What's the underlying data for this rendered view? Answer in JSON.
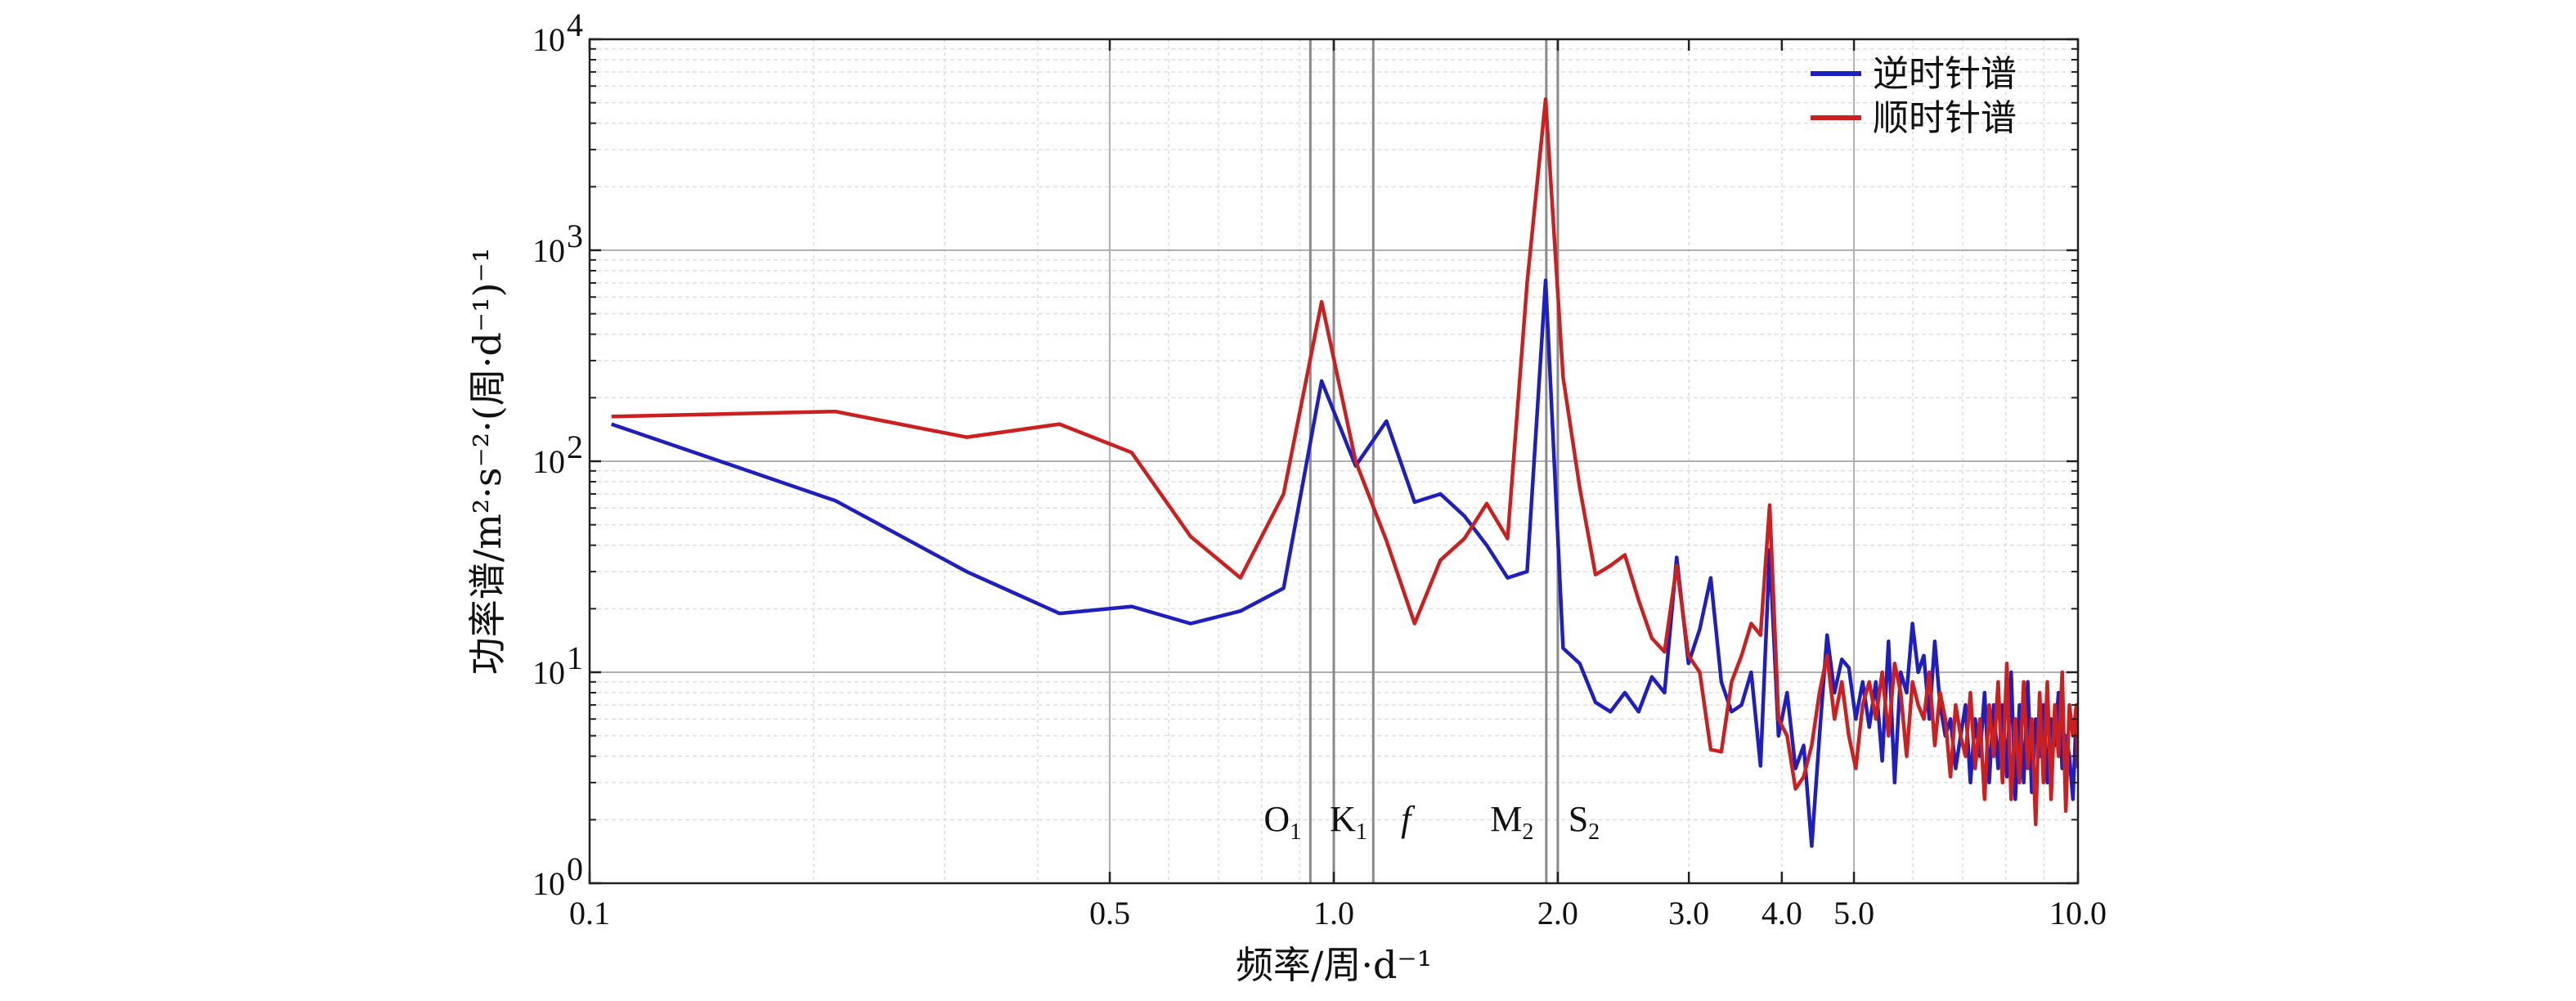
{
  "chart_data": {
    "type": "line",
    "xscale": "log",
    "yscale": "log",
    "xlim": [
      0.1,
      10.0
    ],
    "ylim": [
      1,
      10000
    ],
    "grid": true,
    "legend_position": "top-right",
    "xlabel": "频率/周·d⁻¹",
    "ylabel": "功率谱/m²·s⁻²·(周·d⁻¹)⁻¹",
    "x_ticks": [
      {
        "value": 0.1,
        "label": "0.1"
      },
      {
        "value": 0.5,
        "label": "0.5"
      },
      {
        "value": 1.0,
        "label": "1.0"
      },
      {
        "value": 2.0,
        "label": "2.0"
      },
      {
        "value": 3.0,
        "label": "3.0"
      },
      {
        "value": 4.0,
        "label": "4.0"
      },
      {
        "value": 5.0,
        "label": "5.0"
      },
      {
        "value": 10.0,
        "label": "10.0"
      }
    ],
    "y_ticks": [
      {
        "value": 1,
        "base": "10",
        "exp": "0"
      },
      {
        "value": 10,
        "base": "10",
        "exp": "1"
      },
      {
        "value": 100,
        "base": "10",
        "exp": "2"
      },
      {
        "value": 1000,
        "base": "10",
        "exp": "3"
      },
      {
        "value": 10000,
        "base": "10",
        "exp": "4"
      }
    ],
    "reference_lines": [
      {
        "x": 0.93,
        "label": "O",
        "sub": "1",
        "italic": false
      },
      {
        "x": 1.0,
        "label": "K",
        "sub": "1",
        "italic": false
      },
      {
        "x": 1.13,
        "label": "f",
        "sub": "",
        "italic": true
      },
      {
        "x": 1.93,
        "label": "M",
        "sub": "2",
        "italic": false
      },
      {
        "x": 2.0,
        "label": "S",
        "sub": "2",
        "italic": false
      }
    ],
    "series": [
      {
        "name": "逆时针谱",
        "color": "#1f1fbf",
        "points": [
          [
            0.107,
            150
          ],
          [
            0.214,
            65
          ],
          [
            0.321,
            30
          ],
          [
            0.428,
            19
          ],
          [
            0.535,
            20.5
          ],
          [
            0.642,
            17
          ],
          [
            0.749,
            19.5
          ],
          [
            0.856,
            25
          ],
          [
            0.963,
            240
          ],
          [
            1.07,
            95
          ],
          [
            1.177,
            155
          ],
          [
            1.284,
            64
          ],
          [
            1.391,
            70
          ],
          [
            1.498,
            55
          ],
          [
            1.605,
            40
          ],
          [
            1.712,
            28
          ],
          [
            1.819,
            30
          ],
          [
            1.926,
            720
          ],
          [
            2.033,
            13
          ],
          [
            2.14,
            11
          ],
          [
            2.247,
            7.2
          ],
          [
            2.354,
            6.5
          ],
          [
            2.461,
            8
          ],
          [
            2.568,
            6.5
          ],
          [
            2.675,
            9.5
          ],
          [
            2.782,
            8
          ],
          [
            2.889,
            35
          ],
          [
            2.996,
            11
          ],
          [
            3.103,
            16
          ],
          [
            3.21,
            28
          ],
          [
            3.317,
            9
          ],
          [
            3.424,
            6.5
          ],
          [
            3.531,
            7
          ],
          [
            3.638,
            10
          ],
          [
            3.745,
            3.6
          ],
          [
            3.852,
            38
          ],
          [
            3.959,
            5
          ],
          [
            4.066,
            8
          ],
          [
            4.173,
            3.5
          ],
          [
            4.28,
            4.5
          ],
          [
            4.387,
            1.5
          ],
          [
            4.494,
            5
          ],
          [
            4.601,
            15
          ],
          [
            4.708,
            8
          ],
          [
            4.815,
            11.5
          ],
          [
            4.922,
            10.5
          ],
          [
            5.029,
            6
          ],
          [
            5.136,
            9
          ],
          [
            5.243,
            5.5
          ],
          [
            5.35,
            9
          ],
          [
            5.457,
            3.8
          ],
          [
            5.564,
            14
          ],
          [
            5.671,
            3
          ],
          [
            5.778,
            10
          ],
          [
            5.885,
            8
          ],
          [
            5.992,
            17
          ],
          [
            6.099,
            10
          ],
          [
            6.206,
            12
          ],
          [
            6.313,
            6
          ],
          [
            6.42,
            14
          ],
          [
            6.527,
            7
          ],
          [
            6.634,
            5
          ],
          [
            6.741,
            6
          ],
          [
            6.848,
            3.5
          ],
          [
            6.955,
            5
          ],
          [
            7.062,
            7
          ],
          [
            7.169,
            3
          ],
          [
            7.276,
            6
          ],
          [
            7.383,
            4
          ],
          [
            7.49,
            8
          ],
          [
            7.597,
            3
          ],
          [
            7.704,
            7
          ],
          [
            7.811,
            3.5
          ],
          [
            7.918,
            7
          ],
          [
            8.025,
            3.2
          ],
          [
            8.132,
            10
          ],
          [
            8.239,
            2.5
          ],
          [
            8.346,
            7
          ],
          [
            8.453,
            3
          ],
          [
            8.56,
            9
          ],
          [
            8.667,
            2.7
          ],
          [
            8.774,
            6
          ],
          [
            8.881,
            4
          ],
          [
            8.988,
            7
          ],
          [
            9.095,
            3
          ],
          [
            9.202,
            6
          ],
          [
            9.309,
            4.5
          ],
          [
            9.416,
            8
          ],
          [
            9.523,
            3.5
          ],
          [
            9.63,
            5
          ],
          [
            9.737,
            4
          ],
          [
            9.844,
            2.5
          ],
          [
            9.951,
            6.5
          ],
          [
            10.0,
            4
          ]
        ]
      },
      {
        "name": "顺时针谱",
        "color": "#cc1f1f",
        "points": [
          [
            0.107,
            163
          ],
          [
            0.214,
            172
          ],
          [
            0.321,
            130
          ],
          [
            0.428,
            150
          ],
          [
            0.535,
            110
          ],
          [
            0.642,
            44
          ],
          [
            0.749,
            28
          ],
          [
            0.856,
            70
          ],
          [
            0.963,
            570
          ],
          [
            1.07,
            100
          ],
          [
            1.177,
            42
          ],
          [
            1.284,
            17
          ],
          [
            1.391,
            34
          ],
          [
            1.498,
            43
          ],
          [
            1.605,
            63
          ],
          [
            1.712,
            43
          ],
          [
            1.819,
            700
          ],
          [
            1.926,
            5200
          ],
          [
            2.033,
            250
          ],
          [
            2.14,
            75
          ],
          [
            2.247,
            29
          ],
          [
            2.354,
            32
          ],
          [
            2.461,
            36
          ],
          [
            2.568,
            22
          ],
          [
            2.675,
            14.5
          ],
          [
            2.782,
            12.5
          ],
          [
            2.889,
            32
          ],
          [
            2.996,
            12
          ],
          [
            3.103,
            10
          ],
          [
            3.21,
            4.3
          ],
          [
            3.317,
            4.2
          ],
          [
            3.424,
            9
          ],
          [
            3.531,
            12
          ],
          [
            3.638,
            17
          ],
          [
            3.745,
            15
          ],
          [
            3.852,
            62
          ],
          [
            3.959,
            6
          ],
          [
            4.066,
            5
          ],
          [
            4.173,
            2.8
          ],
          [
            4.28,
            3.2
          ],
          [
            4.387,
            4.5
          ],
          [
            4.494,
            8
          ],
          [
            4.601,
            12
          ],
          [
            4.708,
            6
          ],
          [
            4.815,
            9
          ],
          [
            4.922,
            5
          ],
          [
            5.029,
            3.5
          ],
          [
            5.136,
            7
          ],
          [
            5.243,
            9
          ],
          [
            5.35,
            6
          ],
          [
            5.457,
            10
          ],
          [
            5.564,
            5
          ],
          [
            5.671,
            11
          ],
          [
            5.778,
            8
          ],
          [
            5.885,
            4
          ],
          [
            5.992,
            9
          ],
          [
            6.099,
            7
          ],
          [
            6.206,
            6
          ],
          [
            6.313,
            10
          ],
          [
            6.42,
            4.5
          ],
          [
            6.527,
            8
          ],
          [
            6.634,
            6
          ],
          [
            6.741,
            3.2
          ],
          [
            6.848,
            7
          ],
          [
            6.955,
            5
          ],
          [
            7.062,
            4
          ],
          [
            7.169,
            8
          ],
          [
            7.276,
            3.5
          ],
          [
            7.383,
            6
          ],
          [
            7.49,
            2.5
          ],
          [
            7.597,
            7
          ],
          [
            7.704,
            4
          ],
          [
            7.811,
            9
          ],
          [
            7.918,
            3
          ],
          [
            8.025,
            11
          ],
          [
            8.132,
            2.5
          ],
          [
            8.239,
            6
          ],
          [
            8.346,
            3
          ],
          [
            8.453,
            9
          ],
          [
            8.56,
            3.5
          ],
          [
            8.667,
            6
          ],
          [
            8.774,
            1.9
          ],
          [
            8.881,
            8
          ],
          [
            8.988,
            3
          ],
          [
            9.095,
            9
          ],
          [
            9.202,
            2.5
          ],
          [
            9.309,
            7
          ],
          [
            9.416,
            4
          ],
          [
            9.523,
            10
          ],
          [
            9.63,
            2.2
          ],
          [
            9.737,
            7
          ],
          [
            9.844,
            5
          ],
          [
            9.951,
            7
          ],
          [
            10.0,
            3.5
          ]
        ]
      }
    ]
  }
}
